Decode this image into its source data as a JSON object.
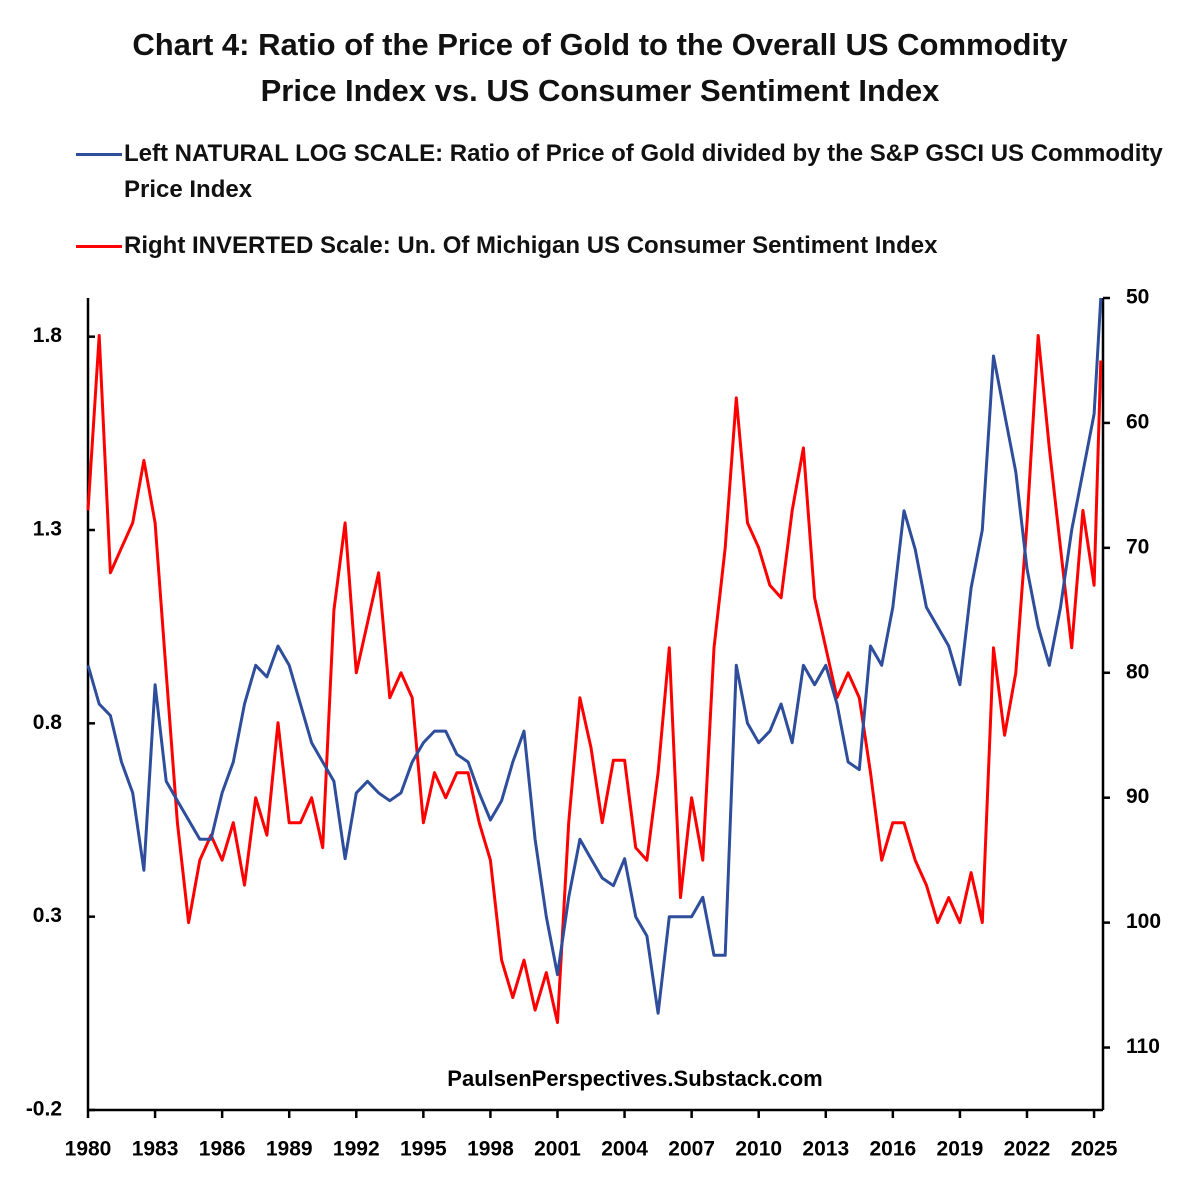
{
  "chart_data": {
    "type": "line",
    "title": "Chart 4: Ratio of the Price of Gold to the Overall US Commodity Price Index vs. US Consumer Sentiment Index",
    "annotation": "PaulsenPerspectives.Substack.com",
    "x": [
      1980,
      1980.5,
      1981,
      1981.5,
      1982,
      1982.5,
      1983,
      1983.5,
      1984,
      1984.5,
      1985,
      1985.5,
      1986,
      1986.5,
      1987,
      1987.5,
      1988,
      1988.5,
      1989,
      1989.5,
      1990,
      1990.5,
      1991,
      1991.5,
      1992,
      1992.5,
      1993,
      1993.5,
      1994,
      1994.5,
      1995,
      1995.5,
      1996,
      1996.5,
      1997,
      1997.5,
      1998,
      1998.5,
      1999,
      1999.5,
      2000,
      2000.5,
      2001,
      2001.5,
      2002,
      2002.5,
      2003,
      2003.5,
      2004,
      2004.5,
      2005,
      2005.5,
      2006,
      2006.5,
      2007,
      2007.5,
      2008,
      2008.5,
      2009,
      2009.5,
      2010,
      2010.5,
      2011,
      2011.5,
      2012,
      2012.5,
      2013,
      2013.5,
      2014,
      2014.5,
      2015,
      2015.5,
      2016,
      2016.5,
      2017,
      2017.5,
      2018,
      2018.5,
      2019,
      2019.5,
      2020,
      2020.5,
      2021,
      2021.5,
      2022,
      2022.5,
      2023,
      2023.5,
      2024,
      2024.5,
      2025,
      2025.3
    ],
    "series": [
      {
        "name": "Left NATURAL LOG SCALE: Ratio of Price of Gold divided by the S&P GSCI US Commodity Price Index",
        "color": "#2e4d9b",
        "values": [
          0.95,
          0.85,
          0.82,
          0.7,
          0.62,
          0.42,
          0.9,
          0.65,
          0.6,
          0.55,
          0.5,
          0.5,
          0.62,
          0.7,
          0.85,
          0.95,
          0.92,
          1.0,
          0.95,
          0.85,
          0.75,
          0.7,
          0.65,
          0.45,
          0.62,
          0.65,
          0.62,
          0.6,
          0.62,
          0.7,
          0.75,
          0.78,
          0.78,
          0.72,
          0.7,
          0.62,
          0.55,
          0.6,
          0.7,
          0.78,
          0.5,
          0.3,
          0.15,
          0.35,
          0.5,
          0.45,
          0.4,
          0.38,
          0.45,
          0.3,
          0.25,
          0.05,
          0.3,
          0.3,
          0.3,
          0.35,
          0.2,
          0.2,
          0.95,
          0.8,
          0.75,
          0.78,
          0.85,
          0.75,
          0.95,
          0.9,
          0.95,
          0.85,
          0.7,
          0.68,
          1.0,
          0.95,
          1.1,
          1.35,
          1.25,
          1.1,
          1.05,
          1.0,
          0.9,
          1.15,
          1.3,
          1.75,
          1.6,
          1.45,
          1.2,
          1.05,
          0.95,
          1.1,
          1.3,
          1.45,
          1.6,
          1.9
        ]
      },
      {
        "name": "Right INVERTED Scale:  Un. Of Michigan US Consumer Sentiment Index",
        "color": "#ff0000",
        "axis": "y2",
        "values": [
          67,
          53,
          72,
          70,
          68,
          63,
          68,
          80,
          92,
          100,
          95,
          93,
          95,
          92,
          97,
          90,
          93,
          84,
          92,
          92,
          90,
          94,
          75,
          68,
          80,
          76,
          72,
          82,
          80,
          82,
          92,
          88,
          90,
          88,
          88,
          92,
          95,
          103,
          106,
          103,
          107,
          104,
          108,
          92,
          82,
          86,
          92,
          87,
          87,
          94,
          95,
          88,
          78,
          98,
          90,
          95,
          78,
          70,
          58,
          68,
          70,
          73,
          74,
          67,
          62,
          74,
          78,
          82,
          80,
          82,
          88,
          95,
          92,
          92,
          95,
          97,
          100,
          98,
          100,
          96,
          100,
          78,
          85,
          80,
          68,
          53,
          62,
          70,
          78,
          67,
          73,
          55
        ]
      }
    ],
    "xlim": [
      1980,
      2025.4
    ],
    "xticks": [
      1980,
      1983,
      1986,
      1989,
      1992,
      1995,
      1998,
      2001,
      2004,
      2007,
      2010,
      2013,
      2016,
      2019,
      2022,
      2025
    ],
    "ylim": [
      -0.2,
      1.9
    ],
    "yticks": [
      -0.2,
      0.3,
      0.8,
      1.3,
      1.8
    ],
    "y2lim": [
      50,
      115
    ],
    "y2ticks": [
      50,
      60,
      70,
      80,
      90,
      100,
      110
    ],
    "y2_inverted": true,
    "grid": false
  }
}
